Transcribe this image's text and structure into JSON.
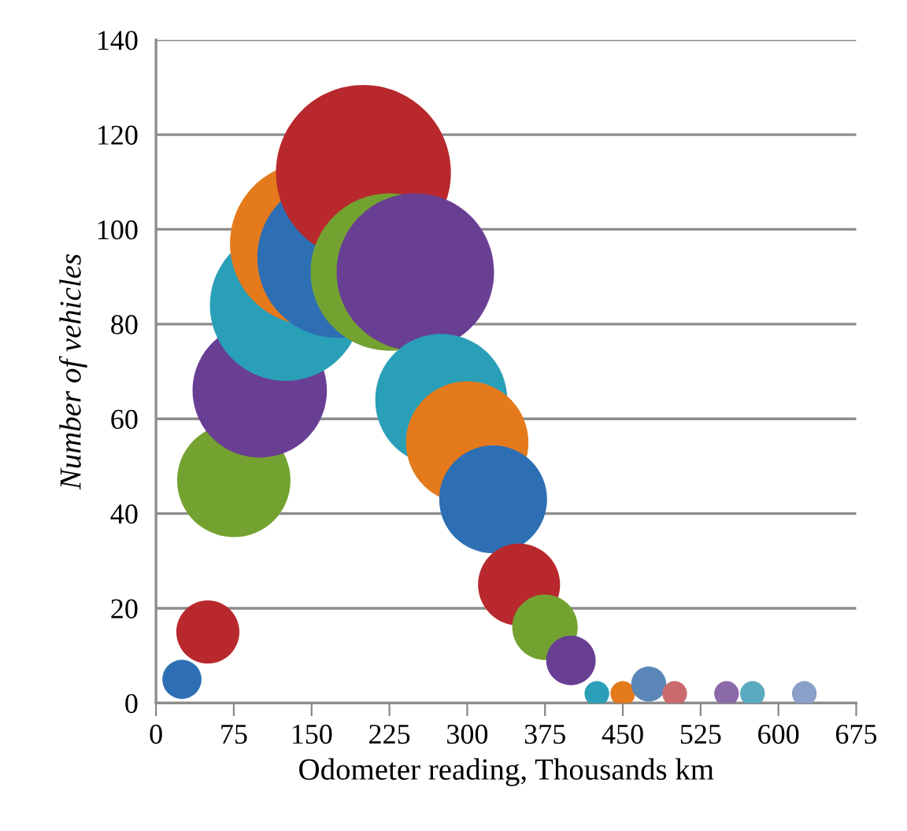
{
  "chart_data": {
    "type": "bubble",
    "xlabel": "Odometer reading, Thousands km",
    "ylabel": "Number of vehicles",
    "x": [
      25,
      50,
      75,
      100,
      125,
      150,
      175,
      200,
      225,
      250,
      275,
      300,
      325,
      350,
      375,
      400,
      425,
      450,
      475,
      500,
      550,
      575,
      625
    ],
    "values": [
      5,
      15,
      47,
      66,
      84,
      97,
      94,
      112,
      91,
      91,
      64,
      55,
      43,
      25,
      16,
      9,
      2,
      2,
      4,
      2,
      2,
      2,
      2
    ],
    "sizes": [
      0.05,
      0.13,
      0.42,
      0.59,
      0.75,
      0.87,
      0.84,
      1,
      0.81,
      0.81,
      0.57,
      0.49,
      0.38,
      0.22,
      0.14,
      0.08,
      0.02,
      0.02,
      0.04,
      0.02,
      0.02,
      0.02,
      0.02
    ],
    "colors": [
      "#2e6fb4",
      "#b8282c",
      "#74a230",
      "#693f94",
      "#2a9fb8",
      "#e47a1c",
      "#2e6fb4",
      "#b8282c",
      "#74a230",
      "#693f94",
      "#2a9fb8",
      "#e47a1c",
      "#2e6fb4",
      "#b8282c",
      "#74a230",
      "#693f94",
      "#2a9fb8",
      "#e47a1c",
      "#5a86b8",
      "#c86a6e",
      "#8a6aa8",
      "#5aaac0",
      "#8aa0c8"
    ],
    "xlim": [
      0,
      675
    ],
    "xticks": [
      0,
      75,
      150,
      225,
      300,
      375,
      450,
      525,
      600,
      675
    ],
    "ylim": [
      0,
      140
    ],
    "yticks": [
      0,
      20,
      40,
      60,
      80,
      100,
      120,
      140
    ],
    "grid": "y",
    "legend": false
  }
}
